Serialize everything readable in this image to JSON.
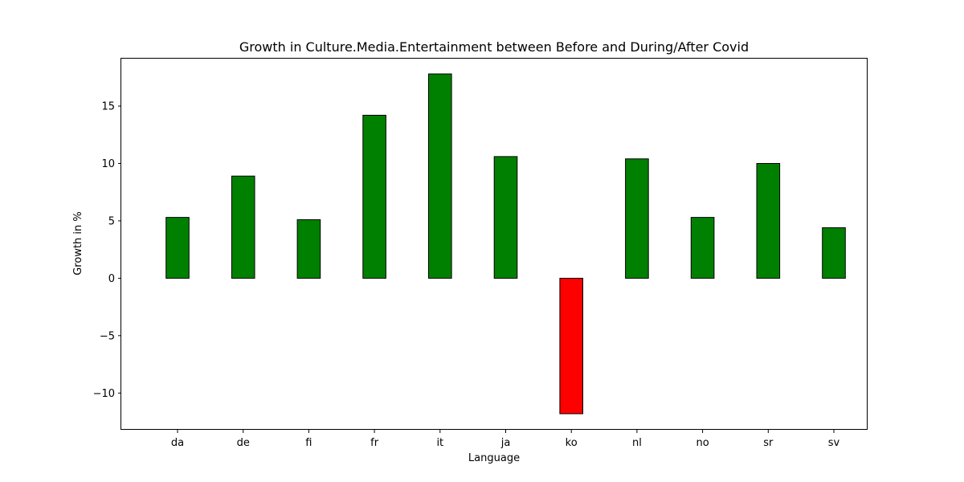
{
  "chart_data": {
    "type": "bar",
    "title": "Growth in Culture.Media.Entertainment between Before and During/After Covid",
    "xlabel": "Language",
    "ylabel": "Growth in %",
    "categories": [
      "da",
      "de",
      "fi",
      "fr",
      "it",
      "ja",
      "ko",
      "nl",
      "no",
      "sr",
      "sv"
    ],
    "values": [
      5.3,
      8.9,
      5.1,
      14.2,
      17.8,
      10.6,
      -11.8,
      10.4,
      5.3,
      10.0,
      4.4
    ],
    "ylim": [
      -13.2,
      19.2
    ],
    "yticks": [
      -10,
      -5,
      0,
      5,
      10,
      15
    ],
    "ytick_labels": [
      "−10",
      "−5",
      "0",
      "5",
      "10",
      "15"
    ],
    "grid": false,
    "colors": {
      "positive": "#008000",
      "negative": "#ff0000",
      "edge": "#000000"
    }
  }
}
